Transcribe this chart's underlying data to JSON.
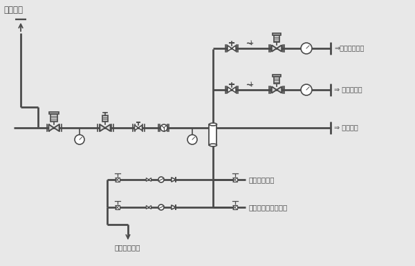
{
  "bg_color": "#e8e8e8",
  "line_color": "#4a4a4a",
  "labels": {
    "hot_wind": "热风补偿",
    "to_radiator": "⇒至热风散热器",
    "to_spray": "⇒ 至汽水妗嘴",
    "steam_inlet": "⇒ 蒸气入口",
    "condensate_drain": "冷凝水排放口",
    "radiator_condensate": "散热器冷凝水排放口"
  }
}
